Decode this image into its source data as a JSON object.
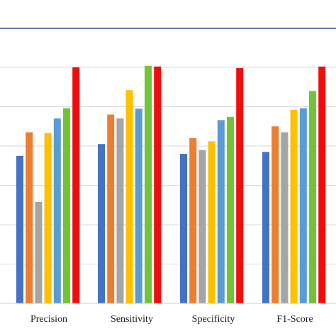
{
  "chart_data": {
    "type": "bar",
    "title": "",
    "xlabel": "",
    "ylabel": "",
    "ylim": [
      0,
      7
    ],
    "grid": true,
    "categories": [
      "Precision",
      "Sensitivity",
      "Specificity",
      "F1-Score"
    ],
    "series": [
      {
        "color": "#4472C4",
        "values": [
          3.75,
          4.05,
          3.8,
          3.85
        ]
      },
      {
        "color": "#ED7D31",
        "values": [
          4.35,
          4.8,
          4.2,
          4.5
        ]
      },
      {
        "color": "#A5A5A5",
        "values": [
          2.58,
          4.7,
          3.9,
          4.35
        ]
      },
      {
        "color": "#FFC000",
        "values": [
          4.33,
          5.42,
          4.12,
          4.92
        ]
      },
      {
        "color": "#5B9BD5",
        "values": [
          4.7,
          4.95,
          4.66,
          4.96
        ]
      },
      {
        "color": "#70C535",
        "values": [
          4.96,
          6.04,
          4.74,
          5.4
        ]
      },
      {
        "color": "#F20D0D",
        "values": [
          6.0,
          6.02,
          5.98,
          6.02
        ]
      }
    ]
  }
}
